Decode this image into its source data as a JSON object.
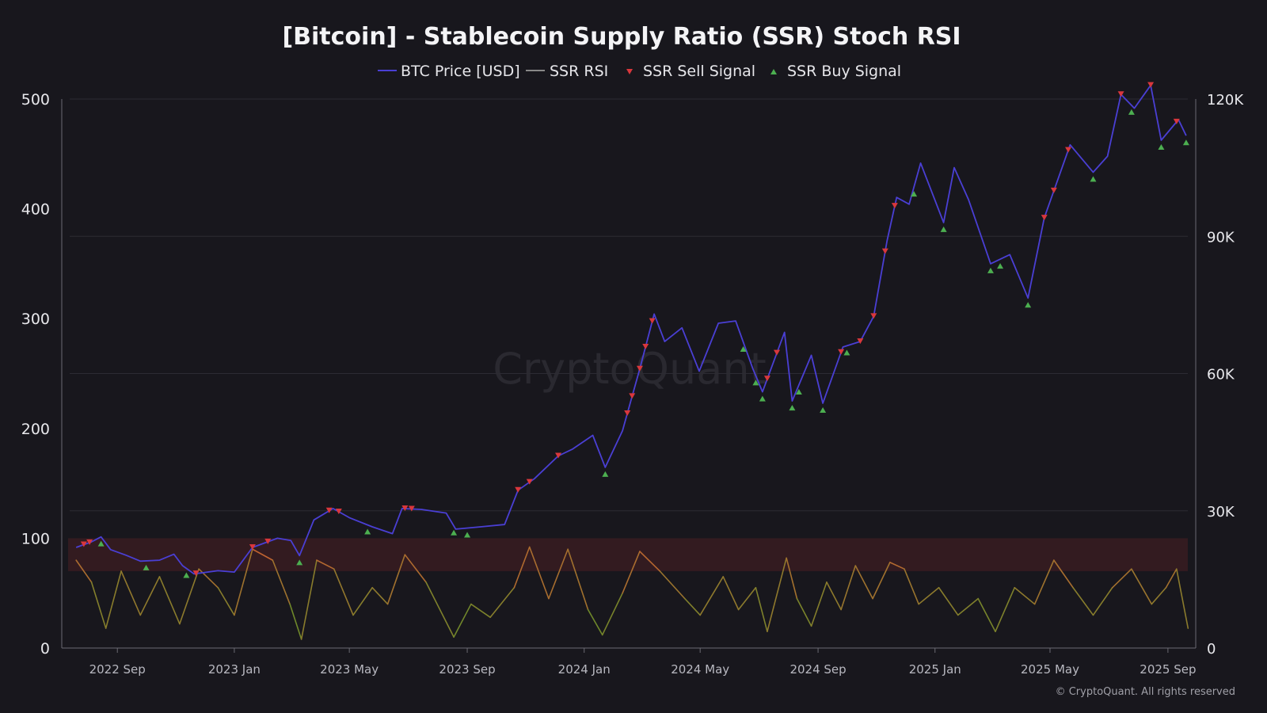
{
  "chart_data": {
    "type": "line",
    "title": "[Bitcoin] - Stablecoin Supply Ratio (SSR) Stoch RSI",
    "legend": [
      {
        "label": "BTC Price [USD]",
        "color": "#4a3fd4",
        "marker": "line"
      },
      {
        "label": "SSR RSI",
        "color": "#888888",
        "marker": "line"
      },
      {
        "label": "SSR Sell Signal",
        "color": "#d9373c",
        "marker": "triangle-down"
      },
      {
        "label": "SSR Buy Signal",
        "color": "#4caf50",
        "marker": "triangle-up"
      }
    ],
    "legend_position": "top-center",
    "x_ticks": [
      "2022 Sep",
      "2023 Jan",
      "2023 May",
      "2023 Sep",
      "2024 Jan",
      "2024 May",
      "2024 Sep",
      "2025 Jan",
      "2025 May",
      "2025 Sep"
    ],
    "y_left": {
      "ticks": [
        "0",
        "100",
        "200",
        "300",
        "400",
        "500"
      ],
      "range": [
        0,
        500
      ]
    },
    "y_right": {
      "ticks": [
        "0",
        "30K",
        "60K",
        "90K",
        "120K"
      ],
      "range": [
        0,
        120000
      ]
    },
    "overbought_band": [
      70,
      100
    ],
    "grid": true,
    "series": [
      {
        "name": "BTC Price [USD]",
        "axis": "right",
        "points": [
          [
            "2022-07-20",
            22000
          ],
          [
            "2022-08-05",
            23200
          ],
          [
            "2022-08-15",
            24300
          ],
          [
            "2022-08-25",
            21500
          ],
          [
            "2022-09-10",
            20300
          ],
          [
            "2022-09-25",
            19000
          ],
          [
            "2022-10-15",
            19200
          ],
          [
            "2022-10-30",
            20500
          ],
          [
            "2022-11-08",
            18000
          ],
          [
            "2022-11-20",
            16200
          ],
          [
            "2022-12-15",
            16900
          ],
          [
            "2023-01-01",
            16600
          ],
          [
            "2023-01-20",
            22000
          ],
          [
            "2023-02-15",
            24000
          ],
          [
            "2023-03-01",
            23500
          ],
          [
            "2023-03-10",
            20200
          ],
          [
            "2023-03-25",
            28000
          ],
          [
            "2023-04-14",
            30500
          ],
          [
            "2023-05-01",
            28500
          ],
          [
            "2023-05-25",
            26500
          ],
          [
            "2023-06-15",
            25000
          ],
          [
            "2023-06-25",
            30500
          ],
          [
            "2023-07-15",
            30300
          ],
          [
            "2023-08-10",
            29500
          ],
          [
            "2023-08-20",
            26000
          ],
          [
            "2023-09-15",
            26500
          ],
          [
            "2023-10-10",
            27000
          ],
          [
            "2023-10-24",
            34500
          ],
          [
            "2023-11-10",
            37000
          ],
          [
            "2023-12-05",
            42000
          ],
          [
            "2023-12-20",
            43500
          ],
          [
            "2024-01-10",
            46500
          ],
          [
            "2024-01-23",
            39500
          ],
          [
            "2024-02-10",
            47500
          ],
          [
            "2024-02-28",
            61000
          ],
          [
            "2024-03-14",
            73000
          ],
          [
            "2024-03-25",
            67000
          ],
          [
            "2024-04-12",
            70000
          ],
          [
            "2024-04-30",
            60500
          ],
          [
            "2024-05-20",
            71000
          ],
          [
            "2024-06-07",
            71500
          ],
          [
            "2024-06-25",
            61000
          ],
          [
            "2024-07-05",
            56000
          ],
          [
            "2024-07-28",
            69000
          ],
          [
            "2024-08-05",
            54000
          ],
          [
            "2024-08-25",
            64000
          ],
          [
            "2024-09-06",
            53500
          ],
          [
            "2024-09-27",
            65800
          ],
          [
            "2024-10-15",
            67000
          ],
          [
            "2024-10-29",
            72500
          ],
          [
            "2024-11-12",
            89000
          ],
          [
            "2024-11-22",
            98500
          ],
          [
            "2024-12-05",
            97000
          ],
          [
            "2024-12-17",
            106000
          ],
          [
            "2025-01-10",
            93000
          ],
          [
            "2025-01-21",
            105000
          ],
          [
            "2025-02-05",
            98000
          ],
          [
            "2025-02-28",
            84000
          ],
          [
            "2025-03-20",
            86000
          ],
          [
            "2025-04-08",
            76500
          ],
          [
            "2025-04-25",
            94000
          ],
          [
            "2025-05-22",
            110000
          ],
          [
            "2025-06-15",
            104000
          ],
          [
            "2025-06-30",
            107500
          ],
          [
            "2025-07-14",
            121000
          ],
          [
            "2025-07-28",
            118000
          ],
          [
            "2025-08-14",
            123000
          ],
          [
            "2025-08-25",
            111000
          ],
          [
            "2025-09-12",
            115500
          ],
          [
            "2025-09-20",
            112000
          ]
        ]
      },
      {
        "name": "SSR RSI",
        "axis": "left",
        "points": [
          [
            "2022-07-20",
            80
          ],
          [
            "2022-08-05",
            60
          ],
          [
            "2022-08-20",
            18
          ],
          [
            "2022-09-05",
            70
          ],
          [
            "2022-09-25",
            30
          ],
          [
            "2022-10-15",
            65
          ],
          [
            "2022-11-05",
            22
          ],
          [
            "2022-11-25",
            72
          ],
          [
            "2022-12-15",
            55
          ],
          [
            "2023-01-01",
            30
          ],
          [
            "2023-01-20",
            90
          ],
          [
            "2023-02-10",
            80
          ],
          [
            "2023-02-28",
            40
          ],
          [
            "2023-03-12",
            8
          ],
          [
            "2023-03-28",
            80
          ],
          [
            "2023-04-15",
            72
          ],
          [
            "2023-05-05",
            30
          ],
          [
            "2023-05-25",
            55
          ],
          [
            "2023-06-10",
            40
          ],
          [
            "2023-06-28",
            85
          ],
          [
            "2023-07-20",
            60
          ],
          [
            "2023-08-18",
            10
          ],
          [
            "2023-09-05",
            40
          ],
          [
            "2023-09-25",
            28
          ],
          [
            "2023-10-20",
            55
          ],
          [
            "2023-11-05",
            92
          ],
          [
            "2023-11-25",
            45
          ],
          [
            "2023-12-15",
            90
          ],
          [
            "2024-01-05",
            35
          ],
          [
            "2024-01-20",
            12
          ],
          [
            "2024-02-10",
            50
          ],
          [
            "2024-02-28",
            88
          ],
          [
            "2024-03-20",
            70
          ],
          [
            "2024-04-15",
            45
          ],
          [
            "2024-05-01",
            30
          ],
          [
            "2024-05-25",
            65
          ],
          [
            "2024-06-10",
            35
          ],
          [
            "2024-06-28",
            55
          ],
          [
            "2024-07-10",
            15
          ],
          [
            "2024-07-30",
            82
          ],
          [
            "2024-08-10",
            45
          ],
          [
            "2024-08-25",
            20
          ],
          [
            "2024-09-10",
            60
          ],
          [
            "2024-09-25",
            35
          ],
          [
            "2024-10-10",
            75
          ],
          [
            "2024-10-28",
            45
          ],
          [
            "2024-11-15",
            78
          ],
          [
            "2024-11-30",
            72
          ],
          [
            "2024-12-15",
            40
          ],
          [
            "2025-01-05",
            55
          ],
          [
            "2025-01-25",
            30
          ],
          [
            "2025-02-15",
            45
          ],
          [
            "2025-03-05",
            15
          ],
          [
            "2025-03-25",
            55
          ],
          [
            "2025-04-15",
            40
          ],
          [
            "2025-05-05",
            80
          ],
          [
            "2025-05-25",
            55
          ],
          [
            "2025-06-15",
            30
          ],
          [
            "2025-07-05",
            55
          ],
          [
            "2025-07-25",
            72
          ],
          [
            "2025-08-15",
            40
          ],
          [
            "2025-08-30",
            55
          ],
          [
            "2025-09-10",
            72
          ],
          [
            "2025-09-22",
            18
          ]
        ]
      }
    ],
    "sell_signal_dates": [
      "2022-07-28",
      "2022-08-03",
      "2022-11-22",
      "2023-01-20",
      "2023-02-05",
      "2023-04-10",
      "2023-04-20",
      "2023-06-28",
      "2023-07-05",
      "2023-10-24",
      "2023-11-05",
      "2023-12-05",
      "2024-02-15",
      "2024-02-20",
      "2024-02-28",
      "2024-03-05",
      "2024-03-12",
      "2024-07-10",
      "2024-07-20",
      "2024-09-25",
      "2024-10-15",
      "2024-10-29",
      "2024-11-10",
      "2024-11-20",
      "2025-04-25",
      "2025-05-05",
      "2025-05-20",
      "2025-07-14",
      "2025-08-14",
      "2025-09-10"
    ],
    "buy_signal_dates": [
      "2022-08-15",
      "2022-10-01",
      "2022-11-12",
      "2023-03-10",
      "2023-05-20",
      "2023-08-18",
      "2023-09-01",
      "2024-01-23",
      "2024-06-15",
      "2024-06-28",
      "2024-07-05",
      "2024-08-05",
      "2024-08-12",
      "2024-09-06",
      "2024-10-01",
      "2024-12-10",
      "2025-01-10",
      "2025-02-28",
      "2025-03-10",
      "2025-04-08",
      "2025-06-15",
      "2025-07-25",
      "2025-08-25",
      "2025-09-20"
    ]
  },
  "watermark": "CryptoQuant",
  "copyright": "© CryptoQuant. All rights reserved"
}
